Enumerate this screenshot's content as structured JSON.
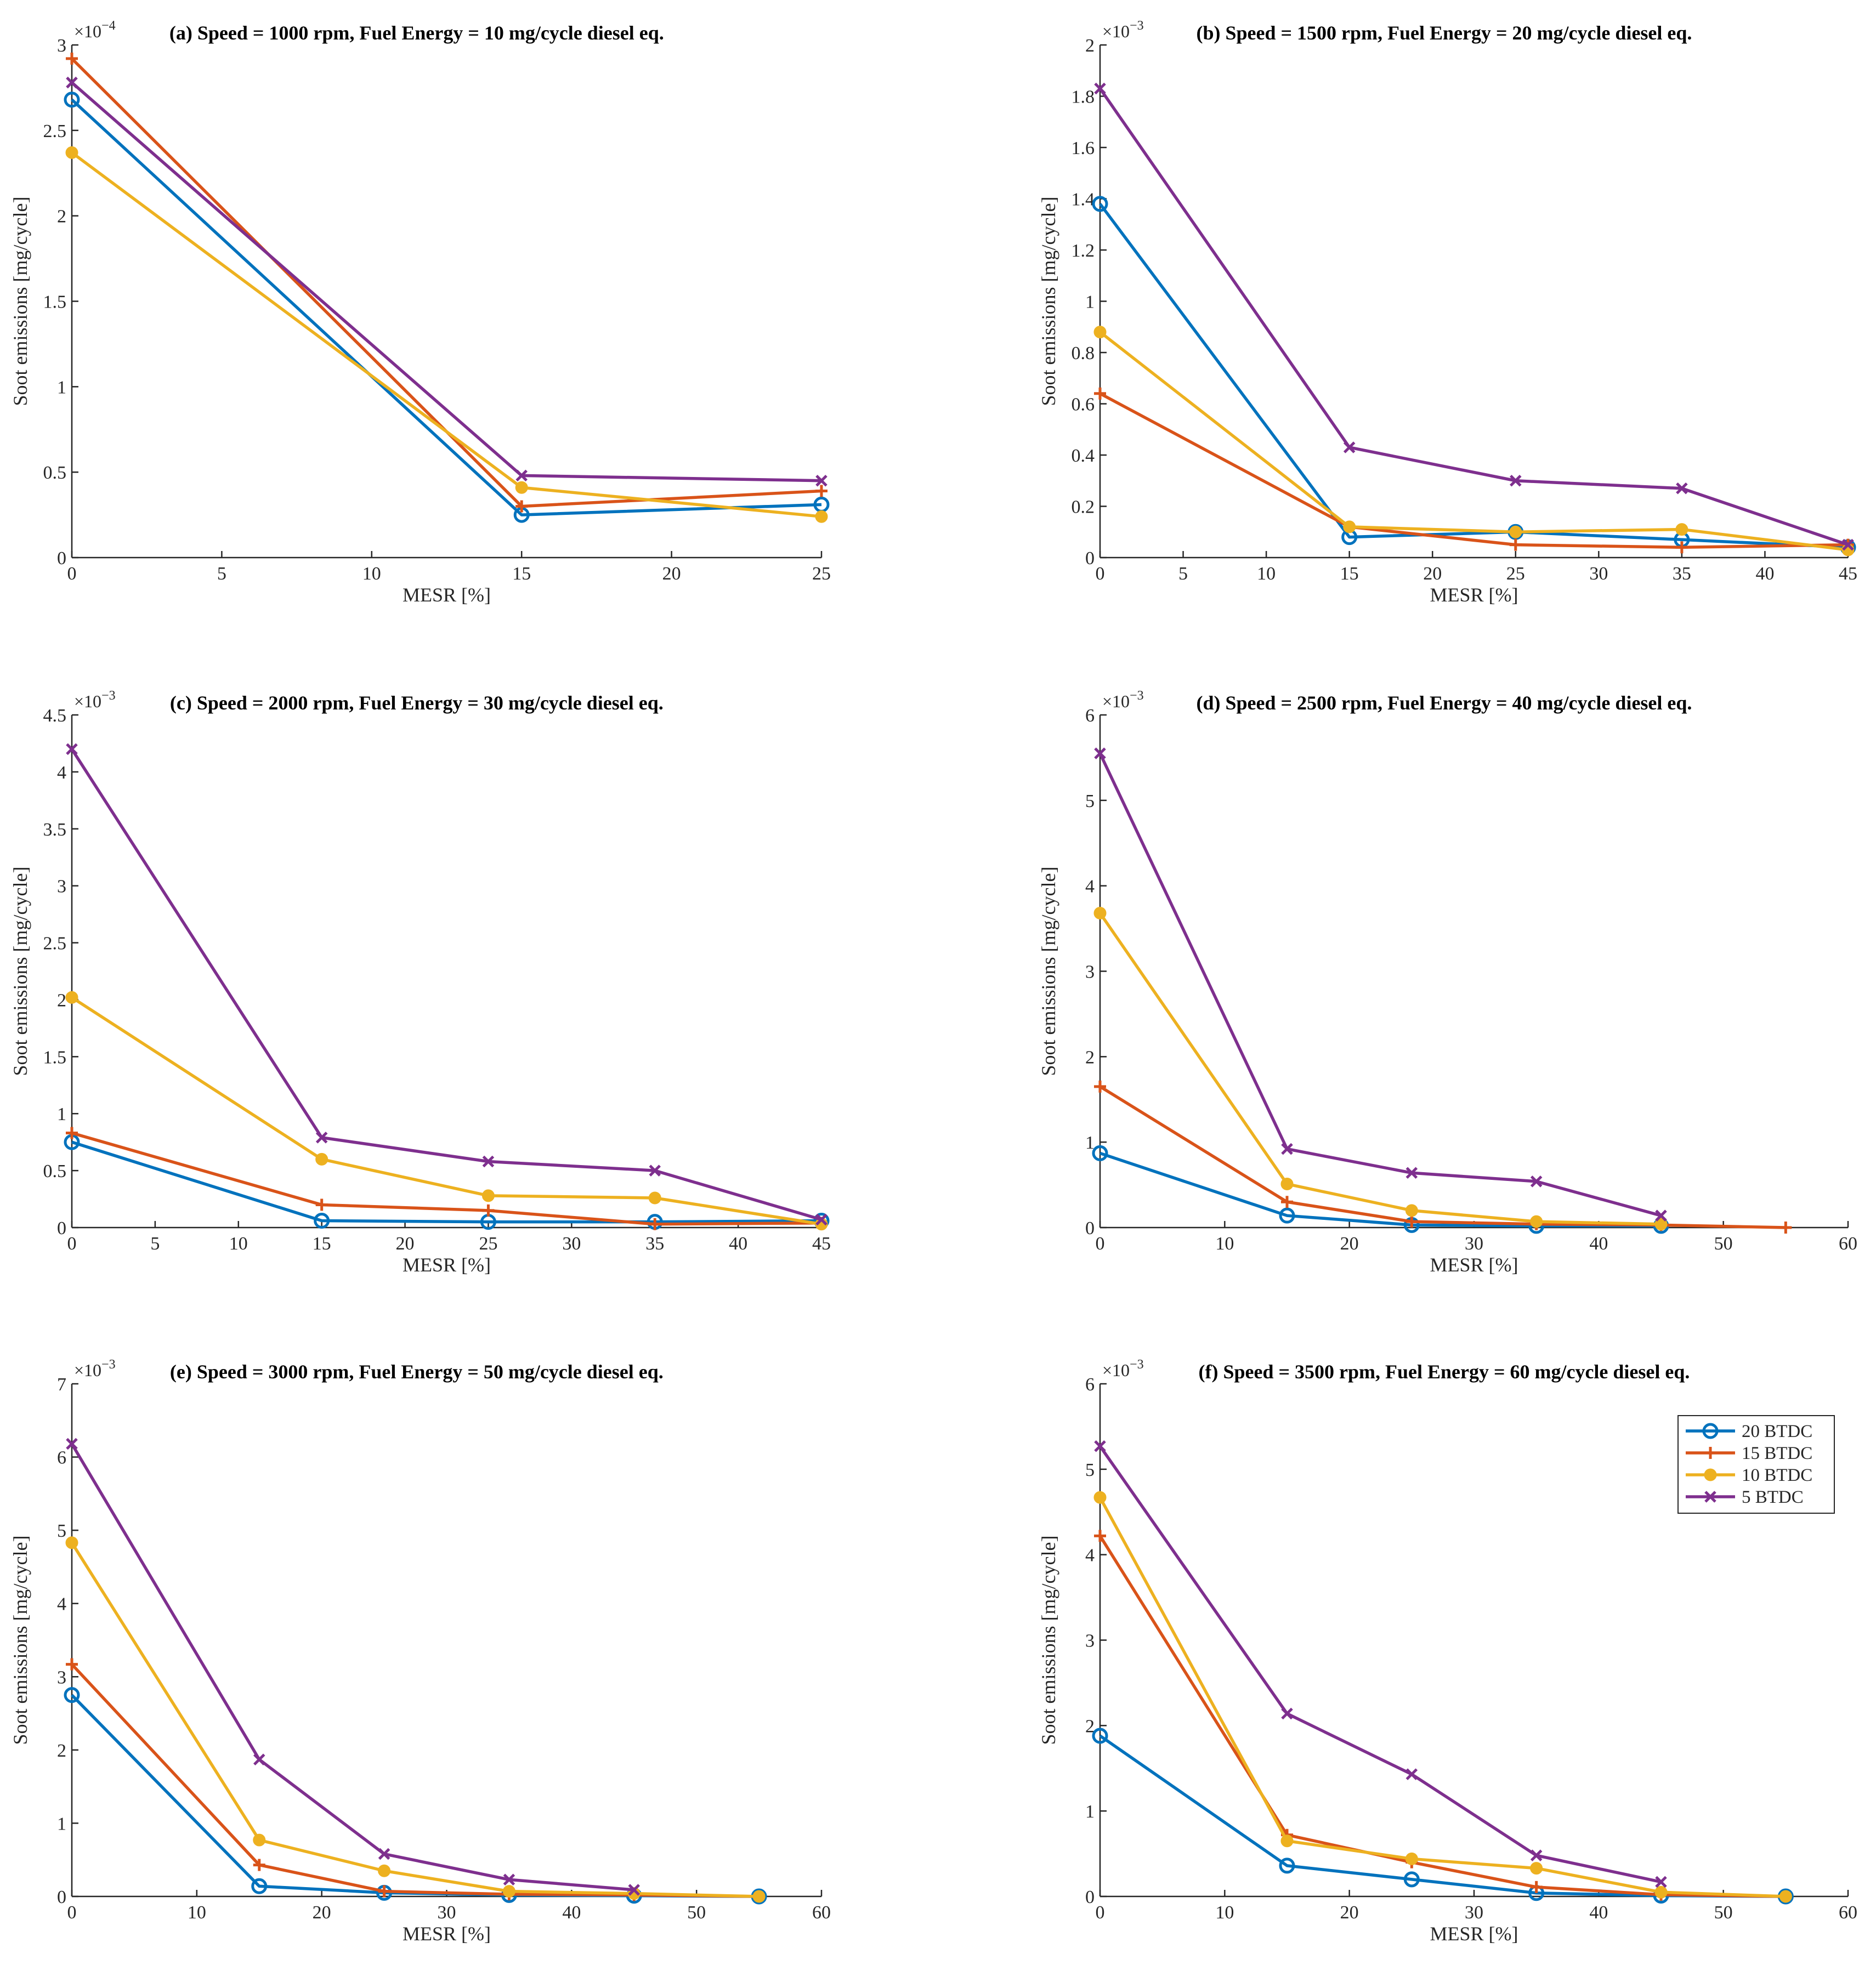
{
  "series_styles": [
    {
      "name": "20 BTDC",
      "color": "#0072BD",
      "marker": "circle"
    },
    {
      "name": "15 BTDC",
      "color": "#D95319",
      "marker": "plus"
    },
    {
      "name": "10 BTDC",
      "color": "#EDB120",
      "marker": "dot"
    },
    {
      "name": "5 BTDC",
      "color": "#7E2F8E",
      "marker": "cross"
    }
  ],
  "chart_data": [
    {
      "type": "line",
      "title": "(a) Speed = 1000 rpm, Fuel Energy = 10 mg/cycle diesel eq.",
      "xlabel": "MESR [%]",
      "ylabel": "Soot emissions [mg/cycle]",
      "multiplier": "×10",
      "exponent": "−4",
      "scale": 0.0001,
      "xlim": [
        0,
        25
      ],
      "ylim": [
        0,
        3
      ],
      "xticks": [
        0,
        5,
        10,
        15,
        20,
        25
      ],
      "xtick_labels": [
        "0",
        "5",
        "10",
        "15",
        "20",
        "25"
      ],
      "yticks": [
        0,
        0.5,
        1,
        1.5,
        2,
        2.5,
        3
      ],
      "ytick_labels": [
        "0",
        "0.5",
        "1",
        "1.5",
        "2",
        "2.5",
        "3"
      ],
      "series": [
        {
          "name": "20 BTDC",
          "x": [
            0,
            15,
            25
          ],
          "y": [
            2.68,
            0.25,
            0.31
          ]
        },
        {
          "name": "15 BTDC",
          "x": [
            0,
            15,
            25
          ],
          "y": [
            2.92,
            0.3,
            0.39
          ]
        },
        {
          "name": "10 BTDC",
          "x": [
            0,
            15,
            25
          ],
          "y": [
            2.37,
            0.41,
            0.24
          ]
        },
        {
          "name": "5 BTDC",
          "x": [
            0,
            15,
            25
          ],
          "y": [
            2.78,
            0.48,
            0.45
          ]
        }
      ]
    },
    {
      "type": "line",
      "title": "(b) Speed = 1500 rpm, Fuel Energy = 20 mg/cycle diesel eq.",
      "xlabel": "MESR [%]",
      "ylabel": "Soot emissions [mg/cycle]",
      "multiplier": "×10",
      "exponent": "−3",
      "scale": 0.001,
      "xlim": [
        0,
        45
      ],
      "ylim": [
        0,
        2
      ],
      "xticks": [
        0,
        5,
        10,
        15,
        20,
        25,
        30,
        35,
        40,
        45
      ],
      "xtick_labels": [
        "0",
        "5",
        "10",
        "15",
        "20",
        "25",
        "30",
        "35",
        "40",
        "45"
      ],
      "yticks": [
        0,
        0.2,
        0.4,
        0.6,
        0.8,
        1,
        1.2,
        1.4,
        1.6,
        1.8,
        2
      ],
      "ytick_labels": [
        "0",
        "0.2",
        "0.4",
        "0.6",
        "0.8",
        "1",
        "1.2",
        "1.4",
        "1.6",
        "1.8",
        "2"
      ],
      "series": [
        {
          "name": "20 BTDC",
          "x": [
            0,
            15,
            25,
            35,
            45
          ],
          "y": [
            1.38,
            0.08,
            0.1,
            0.07,
            0.04
          ]
        },
        {
          "name": "15 BTDC",
          "x": [
            0,
            15,
            25,
            35,
            45
          ],
          "y": [
            0.64,
            0.12,
            0.05,
            0.04,
            0.05
          ]
        },
        {
          "name": "10 BTDC",
          "x": [
            0,
            15,
            25,
            35,
            45
          ],
          "y": [
            0.88,
            0.12,
            0.1,
            0.11,
            0.03
          ]
        },
        {
          "name": "5 BTDC",
          "x": [
            0,
            15,
            25,
            35,
            45
          ],
          "y": [
            1.83,
            0.43,
            0.3,
            0.27,
            0.05
          ]
        }
      ]
    },
    {
      "type": "line",
      "title": "(c) Speed = 2000 rpm, Fuel Energy = 30 mg/cycle diesel eq.",
      "xlabel": "MESR [%]",
      "ylabel": "Soot emissions [mg/cycle]",
      "multiplier": "×10",
      "exponent": "−3",
      "scale": 0.001,
      "xlim": [
        0,
        45
      ],
      "ylim": [
        0,
        4.5
      ],
      "xticks": [
        0,
        5,
        10,
        15,
        20,
        25,
        30,
        35,
        40,
        45
      ],
      "xtick_labels": [
        "0",
        "5",
        "10",
        "15",
        "20",
        "25",
        "30",
        "35",
        "40",
        "45"
      ],
      "yticks": [
        0,
        0.5,
        1,
        1.5,
        2,
        2.5,
        3,
        3.5,
        4,
        4.5
      ],
      "ytick_labels": [
        "0",
        "0.5",
        "1",
        "1.5",
        "2",
        "2.5",
        "3",
        "3.5",
        "4",
        "4.5"
      ],
      "series": [
        {
          "name": "20 BTDC",
          "x": [
            0,
            15,
            25,
            35,
            45
          ],
          "y": [
            0.75,
            0.06,
            0.05,
            0.05,
            0.06
          ]
        },
        {
          "name": "15 BTDC",
          "x": [
            0,
            15,
            25,
            35,
            45
          ],
          "y": [
            0.83,
            0.2,
            0.15,
            0.03,
            0.04
          ]
        },
        {
          "name": "10 BTDC",
          "x": [
            0,
            15,
            25,
            35,
            45
          ],
          "y": [
            2.02,
            0.6,
            0.28,
            0.26,
            0.03
          ]
        },
        {
          "name": "5 BTDC",
          "x": [
            0,
            15,
            25,
            35,
            45
          ],
          "y": [
            4.2,
            0.79,
            0.58,
            0.5,
            0.07
          ]
        }
      ]
    },
    {
      "type": "line",
      "title": "(d) Speed = 2500 rpm, Fuel Energy = 40 mg/cycle diesel eq.",
      "xlabel": "MESR [%]",
      "ylabel": "Soot emissions [mg/cycle]",
      "multiplier": "×10",
      "exponent": "−3",
      "scale": 0.001,
      "xlim": [
        0,
        60
      ],
      "ylim": [
        0,
        6
      ],
      "xticks": [
        0,
        10,
        20,
        30,
        40,
        50,
        60
      ],
      "xtick_labels": [
        "0",
        "10",
        "20",
        "30",
        "40",
        "50",
        "60"
      ],
      "yticks": [
        0,
        1,
        2,
        3,
        4,
        5,
        6
      ],
      "ytick_labels": [
        "0",
        "1",
        "2",
        "3",
        "4",
        "5",
        "6"
      ],
      "series": [
        {
          "name": "20 BTDC",
          "x": [
            0,
            15,
            25,
            35,
            45
          ],
          "y": [
            0.87,
            0.14,
            0.03,
            0.02,
            0.02
          ]
        },
        {
          "name": "15 BTDC",
          "x": [
            0,
            15,
            25,
            35,
            45,
            55
          ],
          "y": [
            1.65,
            0.3,
            0.07,
            0.04,
            0.03,
            0.0
          ]
        },
        {
          "name": "10 BTDC",
          "x": [
            0,
            15,
            25,
            35,
            45
          ],
          "y": [
            3.68,
            0.51,
            0.2,
            0.07,
            0.04
          ]
        },
        {
          "name": "5 BTDC",
          "x": [
            0,
            15,
            25,
            35,
            45
          ],
          "y": [
            5.55,
            0.92,
            0.64,
            0.54,
            0.14
          ]
        }
      ]
    },
    {
      "type": "line",
      "title": "(e) Speed = 3000 rpm, Fuel Energy = 50 mg/cycle diesel eq.",
      "xlabel": "MESR [%]",
      "ylabel": "Soot emissions [mg/cycle]",
      "multiplier": "×10",
      "exponent": "−3",
      "scale": 0.001,
      "xlim": [
        0,
        60
      ],
      "ylim": [
        0,
        7
      ],
      "xticks": [
        0,
        10,
        20,
        30,
        40,
        50,
        60
      ],
      "xtick_labels": [
        "0",
        "10",
        "20",
        "30",
        "40",
        "50",
        "60"
      ],
      "yticks": [
        0,
        1,
        2,
        3,
        4,
        5,
        6,
        7
      ],
      "ytick_labels": [
        "0",
        "1",
        "2",
        "3",
        "4",
        "5",
        "6",
        "7"
      ],
      "series": [
        {
          "name": "20 BTDC",
          "x": [
            0,
            15,
            25,
            35,
            45,
            55
          ],
          "y": [
            2.75,
            0.14,
            0.05,
            0.02,
            0.01,
            0.0
          ]
        },
        {
          "name": "15 BTDC",
          "x": [
            0,
            15,
            25,
            35,
            45,
            55
          ],
          "y": [
            3.17,
            0.43,
            0.07,
            0.03,
            0.02,
            0.0
          ]
        },
        {
          "name": "10 BTDC",
          "x": [
            0,
            15,
            25,
            35,
            45,
            55
          ],
          "y": [
            4.83,
            0.77,
            0.35,
            0.07,
            0.04,
            0.0
          ]
        },
        {
          "name": "5 BTDC",
          "x": [
            0,
            15,
            25,
            35,
            45
          ],
          "y": [
            6.18,
            1.87,
            0.58,
            0.23,
            0.09
          ]
        }
      ]
    },
    {
      "type": "line",
      "title": "(f) Speed = 3500 rpm, Fuel Energy = 60 mg/cycle diesel eq.",
      "xlabel": "MESR [%]",
      "ylabel": "Soot emissions [mg/cycle]",
      "multiplier": "×10",
      "exponent": "−3",
      "scale": 0.001,
      "xlim": [
        0,
        60
      ],
      "ylim": [
        0,
        6
      ],
      "xticks": [
        0,
        10,
        20,
        30,
        40,
        50,
        60
      ],
      "xtick_labels": [
        "0",
        "10",
        "20",
        "30",
        "40",
        "50",
        "60"
      ],
      "yticks": [
        0,
        1,
        2,
        3,
        4,
        5,
        6
      ],
      "ytick_labels": [
        "0",
        "1",
        "2",
        "3",
        "4",
        "5",
        "6"
      ],
      "legend": {
        "entries": [
          "20 BTDC",
          "15 BTDC",
          "10 BTDC",
          "5 BTDC"
        ],
        "location": "top-right"
      },
      "series": [
        {
          "name": "20 BTDC",
          "x": [
            0,
            15,
            25,
            35,
            45,
            55
          ],
          "y": [
            1.88,
            0.36,
            0.2,
            0.04,
            0.01,
            0.0
          ]
        },
        {
          "name": "15 BTDC",
          "x": [
            0,
            15,
            25,
            35,
            45,
            55
          ],
          "y": [
            4.22,
            0.72,
            0.4,
            0.11,
            0.02,
            0.0
          ]
        },
        {
          "name": "10 BTDC",
          "x": [
            0,
            15,
            25,
            35,
            45,
            55
          ],
          "y": [
            4.67,
            0.65,
            0.44,
            0.33,
            0.05,
            0.0
          ]
        },
        {
          "name": "5 BTDC",
          "x": [
            0,
            15,
            25,
            35,
            45
          ],
          "y": [
            5.27,
            2.14,
            1.43,
            0.48,
            0.17
          ]
        }
      ]
    }
  ]
}
